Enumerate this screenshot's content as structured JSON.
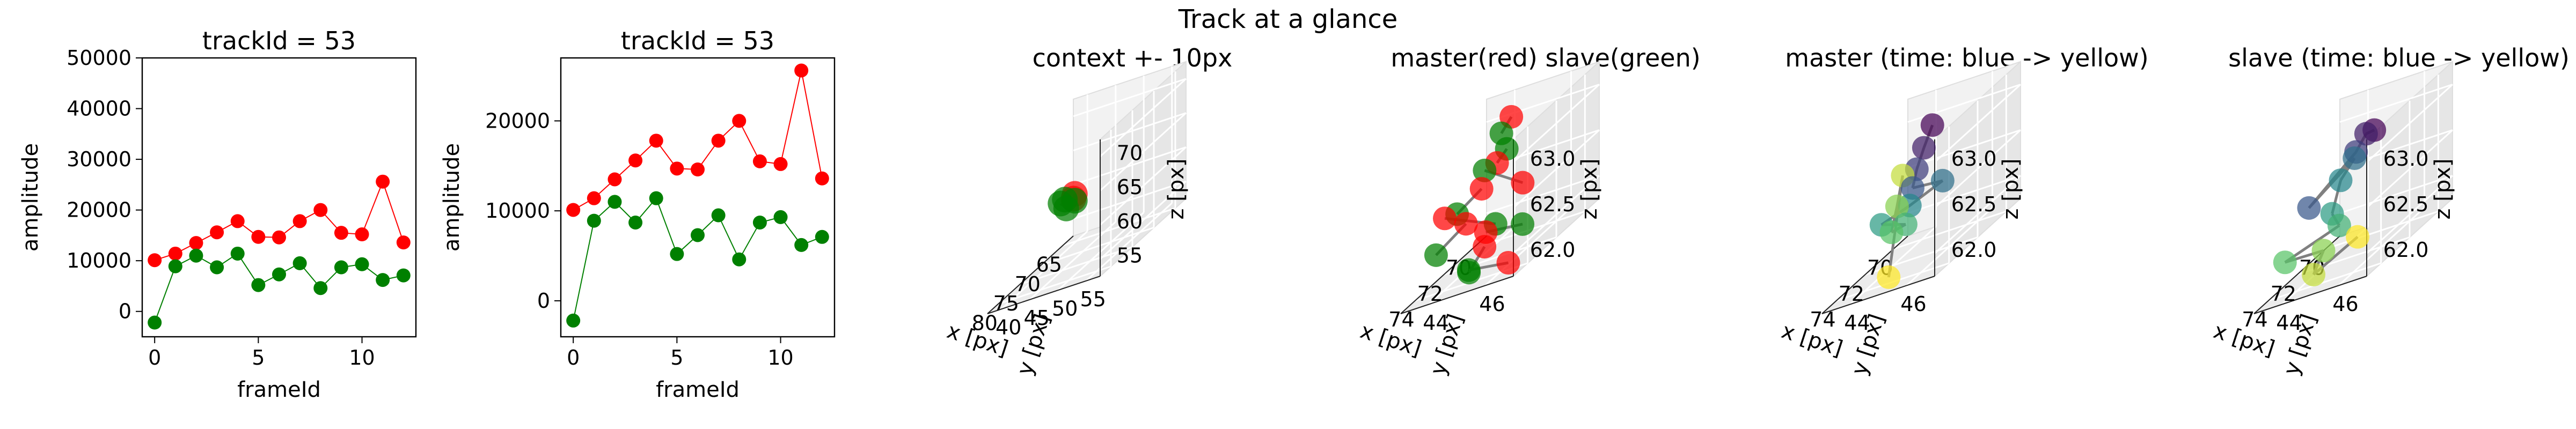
{
  "figure": {
    "suptitle": "Track at a glance"
  },
  "colors": {
    "master": "#ff0000",
    "slave": "#008000",
    "connector": "#808080",
    "pane_face": "#f2f2f2",
    "pane_edge": "#dedede",
    "time_start": "#440154",
    "time_end": "#fde725"
  },
  "chart_data": [
    {
      "type": "line",
      "title": "trackId = 53",
      "xlabel": "frameId",
      "ylabel": "amplitude",
      "xlim": [
        -0.6,
        12.6
      ],
      "ylim": [
        -5000,
        50000
      ],
      "xticks": [
        0,
        5,
        10
      ],
      "yticks": [
        0,
        10000,
        20000,
        30000,
        40000,
        50000
      ],
      "x": [
        0,
        1,
        2,
        3,
        4,
        5,
        6,
        7,
        8,
        9,
        10,
        11,
        12
      ],
      "series": [
        {
          "role": "master",
          "color": "#ff0000",
          "values": [
            10100,
            11400,
            13500,
            15600,
            17800,
            14700,
            14600,
            17800,
            20000,
            15500,
            15200,
            25600,
            13600
          ]
        },
        {
          "role": "slave",
          "color": "#008000",
          "values": [
            -2200,
            8900,
            11000,
            8700,
            11400,
            5200,
            7300,
            9500,
            4600,
            8700,
            9300,
            6200,
            7100
          ]
        }
      ]
    },
    {
      "type": "line",
      "title": "trackId = 53",
      "xlabel": "frameId",
      "ylabel": "amplitude",
      "xlim": [
        -0.6,
        12.6
      ],
      "ylim": [
        -4000,
        27000
      ],
      "xticks": [
        0,
        5,
        10
      ],
      "yticks": [
        0,
        10000,
        20000
      ],
      "x": [
        0,
        1,
        2,
        3,
        4,
        5,
        6,
        7,
        8,
        9,
        10,
        11,
        12
      ],
      "series": [
        {
          "role": "master",
          "color": "#ff0000",
          "values": [
            10100,
            11400,
            13500,
            15600,
            17800,
            14700,
            14600,
            17800,
            20000,
            15500,
            15200,
            25600,
            13600
          ]
        },
        {
          "role": "slave",
          "color": "#008000",
          "values": [
            -2200,
            8900,
            11000,
            8700,
            11400,
            5200,
            7300,
            9500,
            4600,
            8700,
            9300,
            6200,
            7100
          ]
        }
      ]
    },
    {
      "type": "scatter3d",
      "title": "context +- 10px",
      "xlabel": "x [px]",
      "ylabel": "y [px]",
      "zlabel": "z [px]",
      "xticks": [
        "65",
        "70",
        "75",
        "80"
      ],
      "yticks": [
        "40",
        "45",
        "50",
        "55"
      ],
      "zticks": [
        "55",
        "60",
        "65",
        "70"
      ],
      "points": [
        {
          "x": 71,
          "y": 44,
          "z": 61,
          "role": "master",
          "color": "#ff0000"
        },
        {
          "x": 72,
          "y": 45,
          "z": 62,
          "role": "master",
          "color": "#ff0000"
        },
        {
          "x": 72,
          "y": 45,
          "z": 61,
          "role": "slave",
          "color": "#008000"
        },
        {
          "x": 73,
          "y": 44,
          "z": 62,
          "role": "slave",
          "color": "#008000"
        },
        {
          "x": 74,
          "y": 45,
          "z": 61,
          "role": "slave",
          "color": "#008000"
        },
        {
          "x": 74,
          "y": 44,
          "z": 62,
          "role": "slave",
          "color": "#008000"
        }
      ]
    },
    {
      "type": "scatter3d",
      "title": "master(red) slave(green)",
      "xlabel": "x [px]",
      "ylabel": "y [px]",
      "zlabel": "z [px]",
      "xticks": [
        "70",
        "72",
        "74"
      ],
      "yticks": [
        "44",
        "46"
      ],
      "zticks": [
        "62.0",
        "62.5",
        "63.0"
      ],
      "points": [
        {
          "x": 71.6,
          "y": 45.2,
          "z": 63.2,
          "role": "master",
          "color": "#ff0000"
        },
        {
          "x": 72.2,
          "y": 45.0,
          "z": 62.8,
          "role": "master",
          "color": "#ff0000"
        },
        {
          "x": 72.5,
          "y": 44.6,
          "z": 62.6,
          "role": "master",
          "color": "#ff0000"
        },
        {
          "x": 71.2,
          "y": 45.4,
          "z": 62.4,
          "role": "master",
          "color": "#ff0000"
        },
        {
          "x": 72.8,
          "y": 44.2,
          "z": 62.3,
          "role": "master",
          "color": "#ff0000"
        },
        {
          "x": 73.5,
          "y": 43.8,
          "z": 62.5,
          "role": "master",
          "color": "#ff0000"
        },
        {
          "x": 72.4,
          "y": 44.7,
          "z": 62.1,
          "role": "master",
          "color": "#ff0000"
        },
        {
          "x": 71.9,
          "y": 44.4,
          "z": 61.9,
          "role": "master",
          "color": "#ff0000"
        },
        {
          "x": 72.6,
          "y": 45.6,
          "z": 61.7,
          "role": "master",
          "color": "#ff0000"
        },
        {
          "x": 72.1,
          "y": 45.1,
          "z": 63.1,
          "role": "slave",
          "color": "#008000"
        },
        {
          "x": 73.1,
          "y": 45.8,
          "z": 63.0,
          "role": "slave",
          "color": "#008000"
        },
        {
          "x": 74.6,
          "y": 44.8,
          "z": 62.6,
          "role": "slave",
          "color": "#008000"
        },
        {
          "x": 71.5,
          "y": 44.2,
          "z": 62.7,
          "role": "slave",
          "color": "#008000"
        },
        {
          "x": 74.3,
          "y": 43.9,
          "z": 62.2,
          "role": "slave",
          "color": "#008000"
        },
        {
          "x": 72.9,
          "y": 45.3,
          "z": 62.2,
          "role": "slave",
          "color": "#008000"
        },
        {
          "x": 71.8,
          "y": 45.7,
          "z": 62.0,
          "role": "slave",
          "color": "#008000"
        },
        {
          "x": 72.2,
          "y": 44.0,
          "z": 61.7,
          "role": "slave",
          "color": "#008000"
        },
        {
          "x": 73.0,
          "y": 44.4,
          "z": 61.8,
          "role": "slave",
          "color": "#008000"
        }
      ]
    },
    {
      "type": "scatter3d",
      "title": "master (time: blue -> yellow)",
      "xlabel": "x [px]",
      "ylabel": "y [px]",
      "zlabel": "z [px]",
      "xticks": [
        "70",
        "72",
        "74"
      ],
      "yticks": [
        "44",
        "46"
      ],
      "zticks": [
        "62.0",
        "62.5",
        "63.0"
      ],
      "points": [
        {
          "x": 72.6,
          "y": 45.7,
          "z": 63.2,
          "t": 0
        },
        {
          "x": 72.8,
          "y": 45.5,
          "z": 63.0,
          "t": 1
        },
        {
          "x": 72.9,
          "y": 45.3,
          "z": 62.8,
          "t": 2
        },
        {
          "x": 72.8,
          "y": 45.1,
          "z": 62.6,
          "t": 3
        },
        {
          "x": 70.9,
          "y": 45.2,
          "z": 62.4,
          "t": 4
        },
        {
          "x": 72.6,
          "y": 44.9,
          "z": 62.4,
          "t": 5
        },
        {
          "x": 73.8,
          "y": 44.5,
          "z": 62.4,
          "t": 6
        },
        {
          "x": 72.5,
          "y": 44.7,
          "z": 62.2,
          "t": 7
        },
        {
          "x": 72.9,
          "y": 44.4,
          "z": 62.2,
          "t": 8
        },
        {
          "x": 73.3,
          "y": 44.8,
          "z": 62.5,
          "t": 9
        },
        {
          "x": 73.1,
          "y": 44.9,
          "z": 62.8,
          "t": 10
        },
        {
          "x": 72.7,
          "y": 44.2,
          "z": 61.7,
          "t": 11
        }
      ]
    },
    {
      "type": "scatter3d",
      "title": "slave (time: blue -> yellow)",
      "xlabel": "x [px]",
      "ylabel": "y [px]",
      "zlabel": "z [px]",
      "xticks": [
        "70",
        "72",
        "74"
      ],
      "yticks": [
        "44",
        "46"
      ],
      "zticks": [
        "62.0",
        "62.5",
        "63.0"
      ],
      "points": [
        {
          "x": 72.5,
          "y": 46.0,
          "z": 63.1,
          "t": 0
        },
        {
          "x": 71.5,
          "y": 45.2,
          "z": 63.0,
          "t": 1
        },
        {
          "x": 72.2,
          "y": 45.2,
          "z": 62.9,
          "t": 2
        },
        {
          "x": 74.9,
          "y": 44.9,
          "z": 62.7,
          "t": 3
        },
        {
          "x": 72.9,
          "y": 45.5,
          "z": 62.9,
          "t": 4
        },
        {
          "x": 71.7,
          "y": 44.4,
          "z": 62.6,
          "t": 5
        },
        {
          "x": 72.1,
          "y": 44.3,
          "z": 62.3,
          "t": 6
        },
        {
          "x": 71.6,
          "y": 44.3,
          "z": 62.1,
          "t": 7
        },
        {
          "x": 75.0,
          "y": 44.1,
          "z": 62.2,
          "t": 8
        },
        {
          "x": 72.9,
          "y": 44.4,
          "z": 62.0,
          "t": 9
        },
        {
          "x": 73.2,
          "y": 44.2,
          "z": 61.8,
          "t": 10
        },
        {
          "x": 71.5,
          "y": 44.9,
          "z": 61.9,
          "t": 11
        }
      ]
    }
  ]
}
